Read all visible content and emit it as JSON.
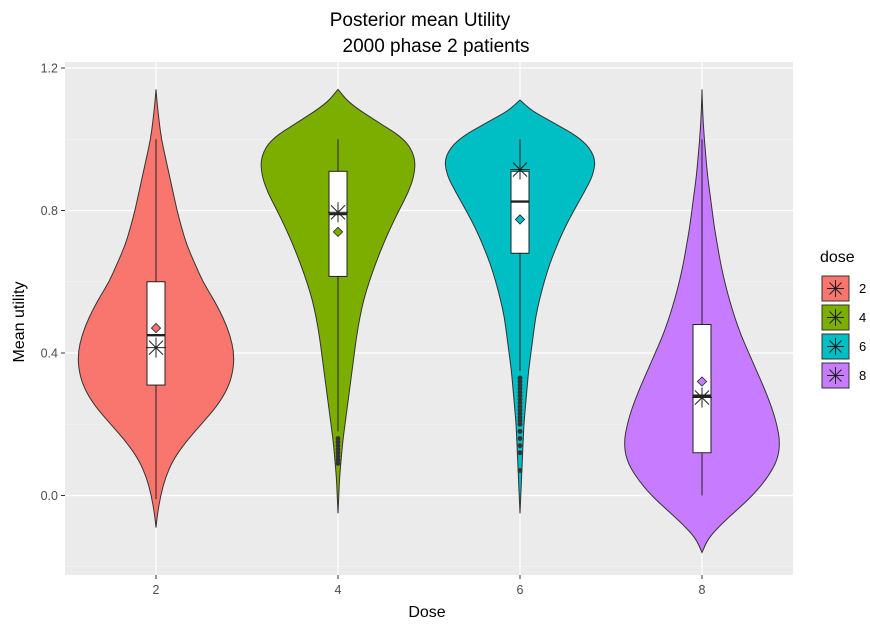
{
  "chart_data": {
    "type": "violin",
    "title": "Posterior mean Utility",
    "subtitle": "2000  phase 2 patients",
    "xlabel": "Dose",
    "ylabel": "Mean utility",
    "categories": [
      "2",
      "4",
      "6",
      "8"
    ],
    "y_ticks": [
      "0.0",
      "0.4",
      "0.8",
      "1.2"
    ],
    "ylim": [
      -0.22,
      1.22
    ],
    "grid": true,
    "legend": {
      "title": "dose",
      "position": "right",
      "entries": [
        "2",
        "4",
        "6",
        "8"
      ]
    },
    "colors": {
      "2": "#f8766d",
      "4": "#7cae00",
      "6": "#00bfc4",
      "8": "#c77cff"
    },
    "panel_background": "#ebebeb",
    "series": [
      {
        "dose": "2",
        "color": "#f8766d",
        "range": [
          -0.09,
          1.14
        ],
        "density": [
          [
            -0.09,
            0
          ],
          [
            -0.05,
            0.02
          ],
          [
            0.0,
            0.06
          ],
          [
            0.05,
            0.12
          ],
          [
            0.1,
            0.22
          ],
          [
            0.15,
            0.38
          ],
          [
            0.2,
            0.58
          ],
          [
            0.25,
            0.78
          ],
          [
            0.3,
            0.92
          ],
          [
            0.35,
            0.99
          ],
          [
            0.4,
            1.0
          ],
          [
            0.45,
            0.95
          ],
          [
            0.5,
            0.86
          ],
          [
            0.55,
            0.74
          ],
          [
            0.6,
            0.6
          ],
          [
            0.65,
            0.5
          ],
          [
            0.7,
            0.4
          ],
          [
            0.75,
            0.33
          ],
          [
            0.8,
            0.27
          ],
          [
            0.85,
            0.22
          ],
          [
            0.9,
            0.17
          ],
          [
            0.95,
            0.12
          ],
          [
            1.0,
            0.07
          ],
          [
            1.05,
            0.04
          ],
          [
            1.1,
            0.015
          ],
          [
            1.14,
            0
          ]
        ],
        "box": {
          "q1": 0.31,
          "median": 0.45,
          "q3": 0.6,
          "whisker_low": -0.01,
          "whisker_high": 1.0
        },
        "mean": 0.47,
        "posterior_mean": 0.415,
        "outliers": []
      },
      {
        "dose": "4",
        "color": "#7cae00",
        "range": [
          -0.05,
          1.14
        ],
        "density": [
          [
            -0.05,
            0
          ],
          [
            0.0,
            0.01
          ],
          [
            0.05,
            0.02
          ],
          [
            0.1,
            0.04
          ],
          [
            0.15,
            0.06
          ],
          [
            0.2,
            0.09
          ],
          [
            0.25,
            0.12
          ],
          [
            0.3,
            0.15
          ],
          [
            0.35,
            0.18
          ],
          [
            0.4,
            0.21
          ],
          [
            0.45,
            0.24
          ],
          [
            0.5,
            0.28
          ],
          [
            0.55,
            0.33
          ],
          [
            0.6,
            0.4
          ],
          [
            0.65,
            0.48
          ],
          [
            0.7,
            0.57
          ],
          [
            0.75,
            0.67
          ],
          [
            0.8,
            0.78
          ],
          [
            0.85,
            0.9
          ],
          [
            0.9,
            0.98
          ],
          [
            0.95,
            0.99
          ],
          [
            1.0,
            0.86
          ],
          [
            1.05,
            0.5
          ],
          [
            1.1,
            0.15
          ],
          [
            1.14,
            0
          ]
        ],
        "box": {
          "q1": 0.615,
          "median": 0.79,
          "q3": 0.91,
          "whisker_low": 0.18,
          "whisker_high": 1.0
        },
        "mean": 0.74,
        "posterior_mean": 0.795,
        "outliers": [
          0.16,
          0.15,
          0.14,
          0.13,
          0.12,
          0.11,
          0.1,
          0.09
        ]
      },
      {
        "dose": "6",
        "color": "#00bfc4",
        "range": [
          -0.05,
          1.11
        ],
        "density": [
          [
            -0.05,
            0
          ],
          [
            0.0,
            0.01
          ],
          [
            0.05,
            0.02
          ],
          [
            0.1,
            0.03
          ],
          [
            0.15,
            0.04
          ],
          [
            0.2,
            0.05
          ],
          [
            0.25,
            0.07
          ],
          [
            0.3,
            0.09
          ],
          [
            0.35,
            0.11
          ],
          [
            0.4,
            0.14
          ],
          [
            0.45,
            0.17
          ],
          [
            0.5,
            0.2
          ],
          [
            0.55,
            0.25
          ],
          [
            0.6,
            0.31
          ],
          [
            0.65,
            0.38
          ],
          [
            0.7,
            0.47
          ],
          [
            0.75,
            0.57
          ],
          [
            0.8,
            0.69
          ],
          [
            0.85,
            0.82
          ],
          [
            0.9,
            0.94
          ],
          [
            0.95,
            0.97
          ],
          [
            1.0,
            0.8
          ],
          [
            1.05,
            0.4
          ],
          [
            1.08,
            0.15
          ],
          [
            1.11,
            0
          ]
        ],
        "box": {
          "q1": 0.68,
          "median": 0.825,
          "q3": 0.91,
          "whisker_low": 0.35,
          "whisker_high": 1.0
        },
        "mean": 0.775,
        "posterior_mean": 0.915,
        "outliers": [
          0.33,
          0.32,
          0.31,
          0.3,
          0.29,
          0.28,
          0.27,
          0.26,
          0.25,
          0.24,
          0.23,
          0.22,
          0.21,
          0.2,
          0.18,
          0.16,
          0.14,
          0.12,
          0.07
        ]
      },
      {
        "dose": "8",
        "color": "#c77cff",
        "range": [
          -0.16,
          1.14
        ],
        "density": [
          [
            -0.16,
            0
          ],
          [
            -0.12,
            0.08
          ],
          [
            -0.08,
            0.25
          ],
          [
            -0.04,
            0.45
          ],
          [
            0.0,
            0.65
          ],
          [
            0.05,
            0.84
          ],
          [
            0.1,
            0.97
          ],
          [
            0.15,
            1.0
          ],
          [
            0.2,
            0.96
          ],
          [
            0.25,
            0.89
          ],
          [
            0.3,
            0.8
          ],
          [
            0.35,
            0.7
          ],
          [
            0.4,
            0.6
          ],
          [
            0.45,
            0.5
          ],
          [
            0.5,
            0.42
          ],
          [
            0.55,
            0.35
          ],
          [
            0.6,
            0.29
          ],
          [
            0.65,
            0.24
          ],
          [
            0.7,
            0.2
          ],
          [
            0.75,
            0.16
          ],
          [
            0.8,
            0.13
          ],
          [
            0.85,
            0.1
          ],
          [
            0.9,
            0.07
          ],
          [
            0.95,
            0.05
          ],
          [
            1.0,
            0.03
          ],
          [
            1.05,
            0.015
          ],
          [
            1.1,
            0.005
          ],
          [
            1.14,
            0
          ]
        ],
        "box": {
          "q1": 0.12,
          "median": 0.28,
          "q3": 0.48,
          "whisker_low": 0.0,
          "whisker_high": 1.0
        },
        "mean": 0.32,
        "posterior_mean": 0.275,
        "outliers": []
      }
    ]
  }
}
